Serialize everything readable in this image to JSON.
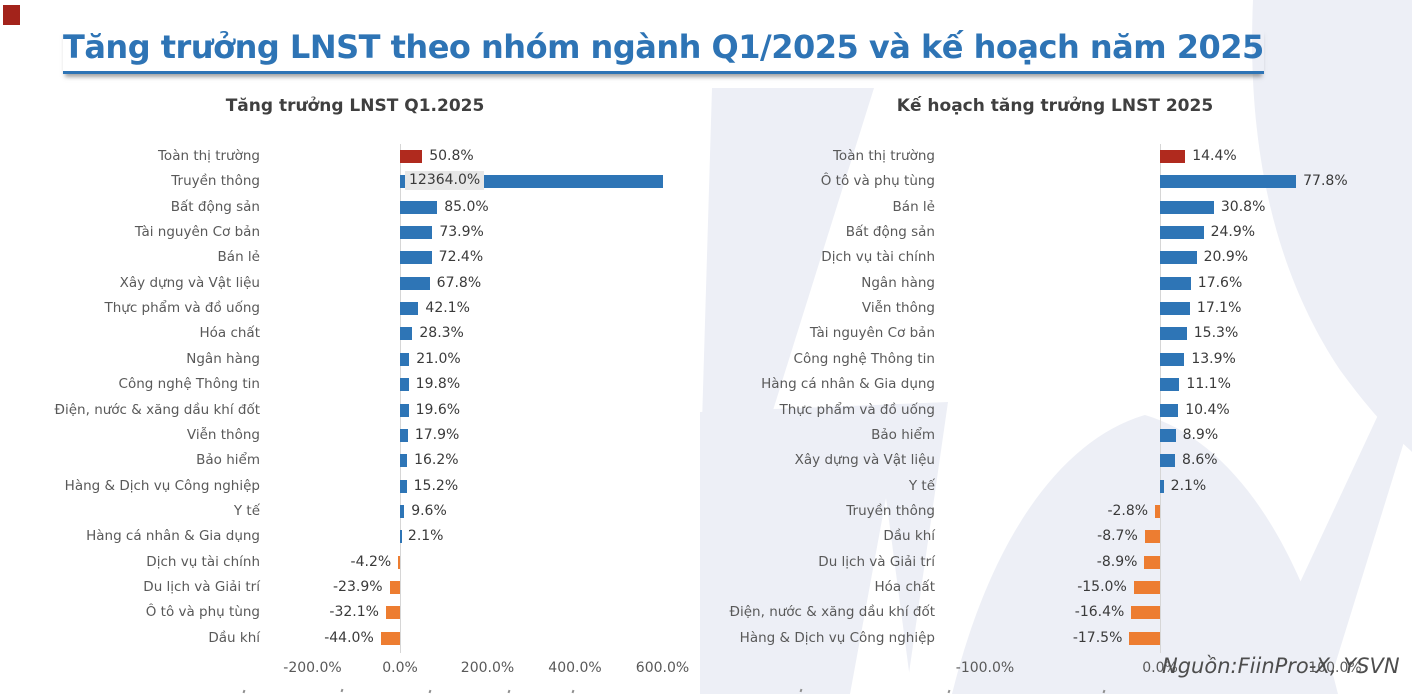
{
  "title": "Tăng trưởng LNST theo nhóm ngành Q1/2025 và kế hoạch năm 2025",
  "source": "Nguồn:FiinPro-X, YSVN",
  "colors": {
    "title_blue": "#2E74B5",
    "bar_positive": "#2E75B6",
    "bar_negative": "#ED7D31",
    "bar_total": "#B02A1E",
    "clipped_label_bg": "#E7E7E7",
    "axis_line": "#D6D6D6",
    "category_text": "#595959",
    "value_text": "#3A3A3A",
    "watermark": "#EDEFF6",
    "corner_mark": "#A3231B"
  },
  "chart_data": [
    {
      "type": "bar",
      "orientation": "horizontal",
      "title": "Tăng trưởng LNST Q1.2025",
      "xlabel": "",
      "ylabel": "",
      "grid": false,
      "legend": null,
      "xlim": [
        -250,
        620
      ],
      "x_ticks": [
        "-200.0%",
        "0.0%",
        "200.0%",
        "400.0%",
        "600.0%"
      ],
      "x_tick_values": [
        -200,
        0,
        200,
        400,
        600
      ],
      "total_row": "Toàn thị trường",
      "clip_note": "Truyền thông bar is clipped at the 600% axis edge; its label 12364.0% sits in a gray box over the bar",
      "categories": [
        "Toàn thị trường",
        "Truyền thông",
        "Bất động sản",
        "Tài nguyên Cơ bản",
        "Bán lẻ",
        "Xây dựng và Vật liệu",
        "Thực phẩm và đồ uống",
        "Hóa chất",
        "Ngân hàng",
        "Công nghệ Thông tin",
        "Điện, nước & xăng dầu khí đốt",
        "Viễn thông",
        "Bảo hiểm",
        "Hàng & Dịch vụ Công nghiệp",
        "Y tế",
        "Hàng cá nhân & Gia dụng",
        "Dịch vụ tài chính",
        "Du lịch và Giải trí",
        "Ô tô và phụ tùng",
        "Dầu khí"
      ],
      "values": [
        50.8,
        12364.0,
        85.0,
        73.9,
        72.4,
        67.8,
        42.1,
        28.3,
        21.0,
        19.8,
        19.6,
        17.9,
        16.2,
        15.2,
        9.6,
        2.1,
        -4.2,
        -23.9,
        -32.1,
        -44.0
      ],
      "value_labels": [
        "50.8%",
        "12364.0%",
        "85.0%",
        "73.9%",
        "72.4%",
        "67.8%",
        "42.1%",
        "28.3%",
        "21.0%",
        "19.8%",
        "19.6%",
        "17.9%",
        "16.2%",
        "15.2%",
        "9.6%",
        "2.1%",
        "-4.2%",
        "-23.9%",
        "-32.1%",
        "-44.0%"
      ]
    },
    {
      "type": "bar",
      "orientation": "horizontal",
      "title": "Kế hoạch tăng trưởng LNST 2025",
      "xlabel": "",
      "ylabel": "",
      "grid": false,
      "legend": null,
      "xlim": [
        -130,
        145
      ],
      "x_ticks": [
        "-100.0%",
        "0.0%",
        "100.0%"
      ],
      "x_tick_values": [
        -100,
        0,
        100
      ],
      "total_row": "Toàn thị trường",
      "categories": [
        "Toàn thị trường",
        "Ô tô và phụ tùng",
        "Bán lẻ",
        "Bất động sản",
        "Dịch vụ tài chính",
        "Ngân hàng",
        "Viễn thông",
        "Tài nguyên Cơ bản",
        "Công nghệ Thông tin",
        "Hàng cá nhân & Gia dụng",
        "Thực phẩm và đồ uống",
        "Bảo hiểm",
        "Xây dựng và Vật liệu",
        "Y tế",
        "Truyền thông",
        "Dầu khí",
        "Du lịch và Giải trí",
        "Hóa chất",
        "Điện, nước & xăng dầu khí đốt",
        "Hàng & Dịch vụ Công nghiệp"
      ],
      "values": [
        14.4,
        77.8,
        30.8,
        24.9,
        20.9,
        17.6,
        17.1,
        15.3,
        13.9,
        11.1,
        10.4,
        8.9,
        8.6,
        2.1,
        -2.8,
        -8.7,
        -8.9,
        -15.0,
        -16.4,
        -17.5
      ],
      "value_labels": [
        "14.4%",
        "77.8%",
        "30.8%",
        "24.9%",
        "20.9%",
        "17.6%",
        "17.1%",
        "15.3%",
        "13.9%",
        "11.1%",
        "10.4%",
        "8.9%",
        "8.6%",
        "2.1%",
        "-2.8%",
        "-8.7%",
        "-8.9%",
        "-15.0%",
        "-16.4%",
        "-17.5%"
      ]
    }
  ]
}
